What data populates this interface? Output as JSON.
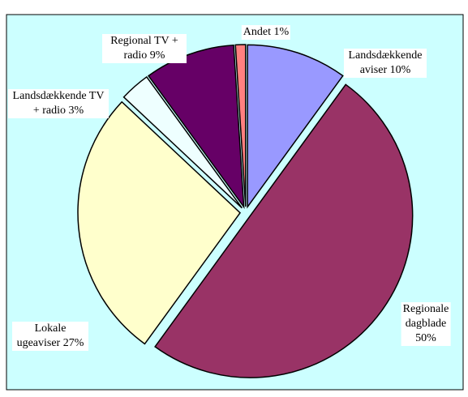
{
  "chart_data": {
    "type": "pie",
    "categories": [
      "Landsdækkende aviser",
      "Regionale dagblade",
      "Lokale ugeaviser",
      "Landsdækkende TV + radio",
      "Regional TV + radio",
      "Andet"
    ],
    "values": [
      10,
      50,
      27,
      3,
      9,
      1
    ],
    "value_labels": [
      "10%",
      "50%",
      "27%",
      "3%",
      "9%",
      "1%"
    ],
    "colors": [
      "#9999ff",
      "#993366",
      "#ffffcc",
      "#eeffff",
      "#660066",
      "#ff8080"
    ]
  }
}
